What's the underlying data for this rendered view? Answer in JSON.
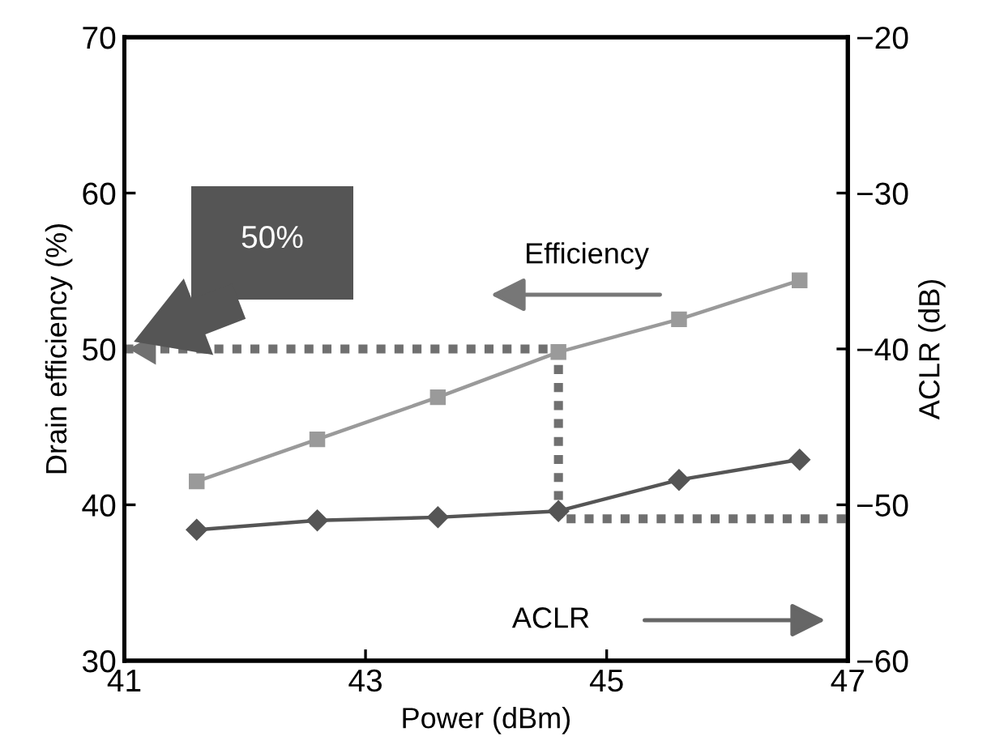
{
  "chart_data": {
    "type": "line",
    "xlabel": "Power (dBm)",
    "ylabel": "Drain efficiency (%)",
    "y2label": "ACLR (dB)",
    "xlim": [
      41,
      47
    ],
    "xticks": [
      41,
      43,
      45,
      47
    ],
    "ylim": [
      30,
      70
    ],
    "yticks": [
      30,
      40,
      50,
      60,
      70
    ],
    "y2lim": [
      -60,
      -20
    ],
    "y2ticks": [
      {
        "value": -60,
        "label": "−60"
      },
      {
        "value": -50,
        "label": "−50"
      },
      {
        "value": -40,
        "label": "−40"
      },
      {
        "value": -30,
        "label": "−30"
      },
      {
        "value": -20,
        "label": "−20"
      }
    ],
    "grid": false,
    "legend": false,
    "series": [
      {
        "color": "#9a9a9a",
        "marker": "square",
        "x": [
          41.6,
          42.6,
          43.6,
          44.6,
          45.6,
          46.6
        ],
        "values": [
          41.5,
          44.2,
          46.9,
          49.8,
          51.9,
          54.4
        ]
      },
      {
        "color": "#555555",
        "marker": "diamond",
        "axis": "y2",
        "x": [
          41.6,
          42.6,
          43.6,
          44.6,
          45.6,
          46.6
        ],
        "values": [
          -51.6,
          -51.0,
          -50.8,
          -50.4,
          -48.4,
          -47.1
        ]
      },
      {
        "color": "#707070",
        "marker": "none",
        "line_style": "dotted",
        "x": [
          41,
          44.6,
          44.6,
          47
        ],
        "values": [
          50,
          50,
          39.1,
          39.1
        ]
      }
    ],
    "annotations": [
      "50%",
      "Efficiency",
      "ACLR"
    ]
  }
}
